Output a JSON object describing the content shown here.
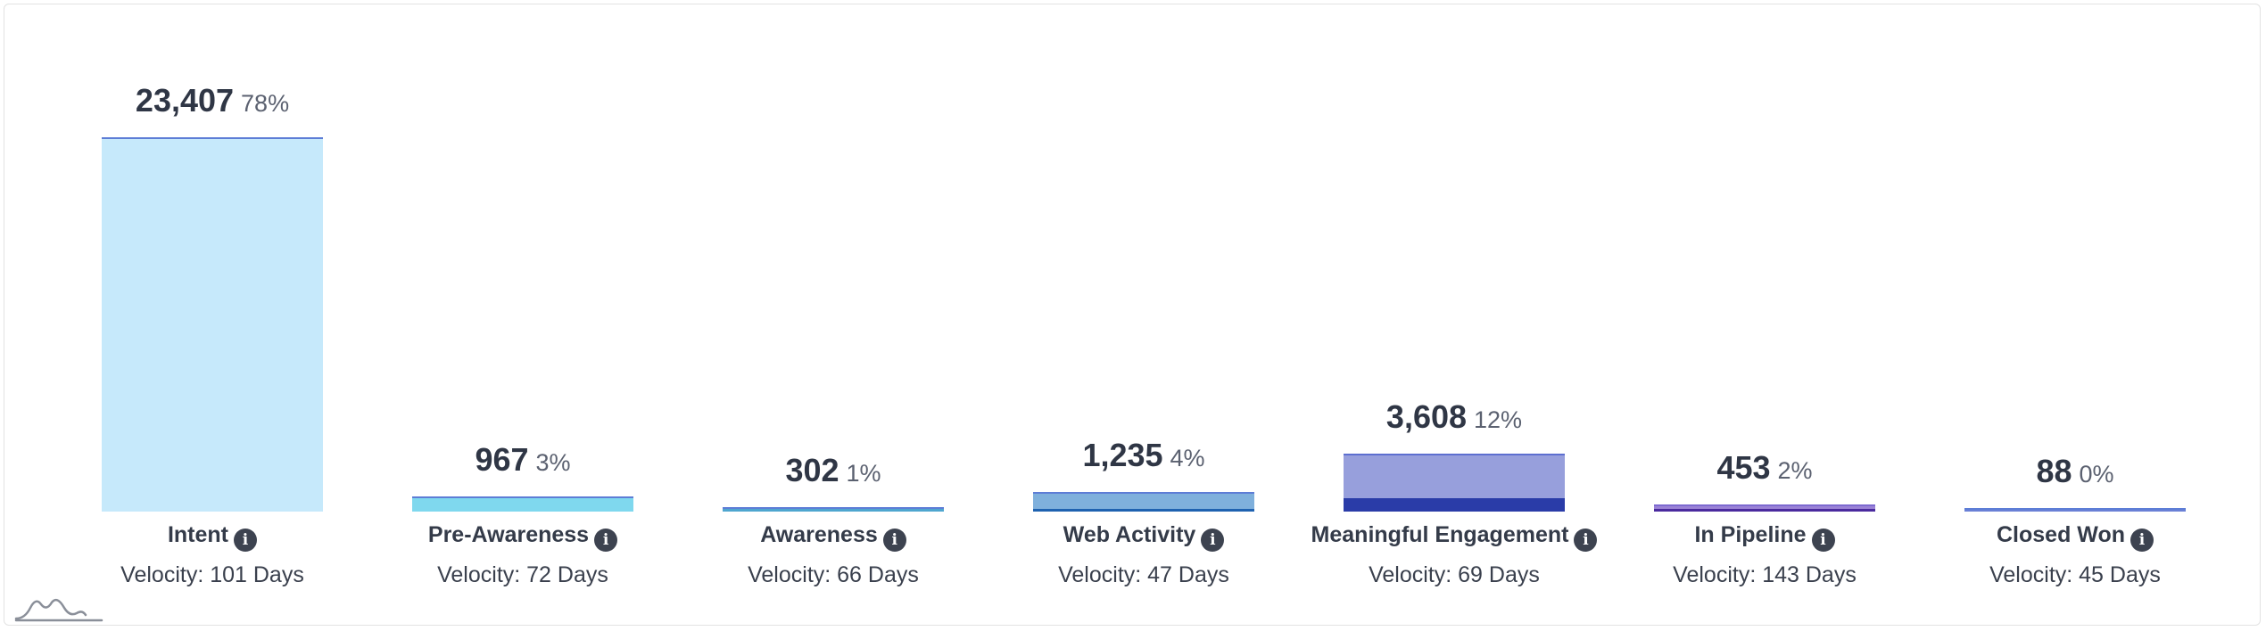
{
  "funnel": {
    "stages": [
      {
        "label": "Intent",
        "value": "23,407",
        "percent": "78%",
        "velocity": "Velocity: 101 Days",
        "bar_fill_fraction": 1.0,
        "dark_fill_fraction": 0.0,
        "fill_color": "#c6e9fb",
        "top_color": "#5d7dd6",
        "base_color": "#c6e9fb"
      },
      {
        "label": "Pre-Awareness",
        "value": "967",
        "percent": "3%",
        "velocity": "Velocity: 72 Days",
        "bar_fill_fraction": 0.0413,
        "dark_fill_fraction": 0.0413,
        "fill_color": "#7fd8ee",
        "top_color": "#5d7dd6",
        "base_color": "#7fd8ee"
      },
      {
        "label": "Awareness",
        "value": "302",
        "percent": "1%",
        "velocity": "Velocity: 66 Days",
        "bar_fill_fraction": 0.0129,
        "dark_fill_fraction": 0.0129,
        "fill_color": "#4fa6cf",
        "top_color": "#5d7dd6",
        "base_color": "#4fa6cf"
      },
      {
        "label": "Web Activity",
        "value": "1,235",
        "percent": "4%",
        "velocity": "Velocity: 47 Days",
        "bar_fill_fraction": 0.0528,
        "dark_fill_fraction": 0.008,
        "fill_color": "#7fb0dc",
        "top_color": "#5d7dd6",
        "base_color": "#1f62b0"
      },
      {
        "label": "Meaningful Engagement",
        "value": "3,608",
        "percent": "12%",
        "velocity": "Velocity: 69 Days",
        "bar_fill_fraction": 0.1541,
        "dark_fill_fraction": 0.035,
        "fill_color": "#979fdc",
        "top_color": "#5d6fd0",
        "base_color": "#2a3ca8"
      },
      {
        "label": "In Pipeline",
        "value": "453",
        "percent": "2%",
        "velocity": "Velocity: 143 Days",
        "bar_fill_fraction": 0.0194,
        "dark_fill_fraction": 0.008,
        "fill_color": "#9b83d6",
        "top_color": "#7d6ad0",
        "base_color": "#4a2a9e"
      },
      {
        "label": "Closed Won",
        "value": "88",
        "percent": "0%",
        "velocity": "Velocity: 45 Days",
        "bar_fill_fraction": 0.0038,
        "dark_fill_fraction": 0.0038,
        "fill_color": "#6a80d6",
        "top_color": "#5d7dd6",
        "base_color": "#6a80d6"
      }
    ]
  },
  "icons": {
    "info": "info-icon",
    "logo": "mountain-logo-icon"
  },
  "info_glyph": "i"
}
